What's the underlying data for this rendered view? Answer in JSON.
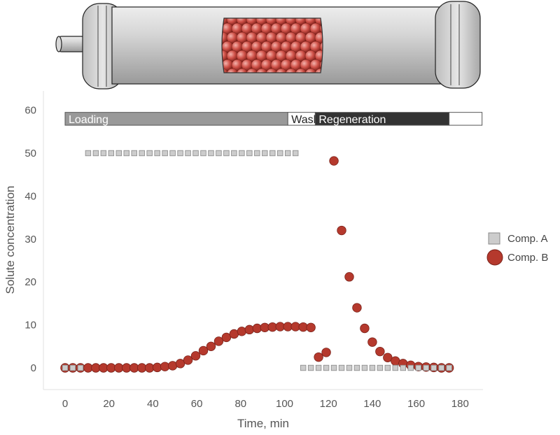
{
  "chart_data": {
    "type": "scatter",
    "xlabel": "Time, min",
    "ylabel": "Solute concentration",
    "xlim": [
      -10,
      190
    ],
    "ylim": [
      -5,
      65
    ],
    "xticks": [
      "0",
      "20",
      "40",
      "60",
      "80",
      "100",
      "120",
      "140",
      "160",
      "180"
    ],
    "yticks": [
      "0",
      "10",
      "20",
      "30",
      "40",
      "50",
      "60"
    ],
    "grid": false,
    "legend_position": "right",
    "phases": [
      {
        "label": "Loading",
        "start": 0,
        "end": 101.5,
        "color": "#999999",
        "text_color": "#ffffff"
      },
      {
        "label": "Wash",
        "start": 101.5,
        "end": 114,
        "color": "#ffffff",
        "text_color": "#222222"
      },
      {
        "label": "Regeneration",
        "start": 114,
        "end": 175,
        "color": "#333333",
        "text_color": "#ffffff"
      },
      {
        "label": "",
        "start": 175,
        "end": 190,
        "color": "#ffffff",
        "text_color": "#222222"
      }
    ],
    "series": [
      {
        "name": "Comp. A",
        "marker": "square",
        "color": "#cccccc",
        "stroke": "#888888",
        "x": [
          0,
          3.5,
          7,
          10.5,
          14,
          17.5,
          21,
          24.5,
          28,
          31.5,
          35,
          38.5,
          42,
          45.5,
          49,
          52.5,
          56,
          59.5,
          63,
          66.5,
          70,
          73.5,
          77,
          80.5,
          84,
          87.5,
          91,
          94.5,
          98,
          101.5,
          105,
          108.5,
          112,
          115.5,
          119,
          122.5,
          126,
          129.5,
          133,
          136.5,
          140,
          143.5,
          147,
          150.5,
          154,
          157.5,
          161,
          164.5,
          168,
          171.5,
          175
        ],
        "y": [
          0,
          0,
          0,
          50,
          50,
          50,
          50,
          50,
          50,
          50,
          50,
          50,
          50,
          50,
          50,
          50,
          50,
          50,
          50,
          50,
          50,
          50,
          50,
          50,
          50,
          50,
          50,
          50,
          50,
          50,
          50,
          0,
          0,
          0,
          0,
          0,
          0,
          0,
          0,
          0,
          0,
          0,
          0,
          0,
          0,
          0,
          0,
          0,
          0,
          0,
          0
        ]
      },
      {
        "name": "Comp. B",
        "marker": "circle",
        "color": "#b5392d",
        "stroke": "#7a221a",
        "x": [
          0,
          3.5,
          7,
          10.5,
          14,
          17.5,
          21,
          24.5,
          28,
          31.5,
          35,
          38.5,
          42,
          45.5,
          49,
          52.5,
          56,
          59.5,
          63,
          66.5,
          70,
          73.5,
          77,
          80.5,
          84,
          87.5,
          91,
          94.5,
          98,
          101.5,
          105,
          108.5,
          112,
          115.5,
          119,
          122.5,
          126,
          129.5,
          133,
          136.5,
          140,
          143.5,
          147,
          150.5,
          154,
          157.5,
          161,
          164.5,
          168,
          171.5,
          175
        ],
        "y": [
          0,
          0,
          0,
          0,
          0,
          0,
          0,
          0,
          0,
          0,
          0,
          0,
          0.1,
          0.3,
          0.5,
          1,
          1.8,
          2.8,
          4,
          5,
          6.2,
          7.1,
          7.9,
          8.5,
          8.9,
          9.2,
          9.4,
          9.5,
          9.6,
          9.6,
          9.6,
          9.5,
          9.4,
          2.5,
          3.6,
          48.2,
          32,
          21.2,
          14,
          9.2,
          6,
          3.8,
          2.4,
          1.6,
          1,
          0.6,
          0.3,
          0.2,
          0.1,
          0,
          0
        ]
      }
    ]
  }
}
